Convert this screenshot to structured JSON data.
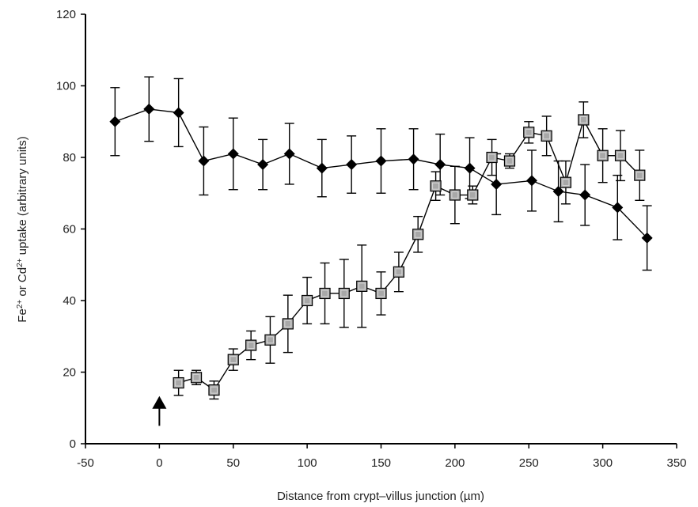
{
  "chart_data": {
    "type": "line",
    "title": "",
    "xlabel": "Distance from crypt–villus junction (µm)",
    "ylabel": {
      "parts": [
        {
          "t": "Fe",
          "sup": false
        },
        {
          "t": "2+",
          "sup": true
        },
        {
          "t": " or Cd",
          "sup": false
        },
        {
          "t": "2+",
          "sup": true
        },
        {
          "t": " uptake (arbitrary units)",
          "sup": false
        }
      ]
    },
    "xlim": [
      -50,
      350
    ],
    "ylim": [
      0,
      120
    ],
    "xticks": [
      -50,
      0,
      50,
      100,
      150,
      200,
      250,
      300,
      350
    ],
    "yticks": [
      0,
      20,
      40,
      60,
      80,
      100,
      120
    ],
    "grid": false,
    "legend": "none",
    "annotation": {
      "type": "arrow-up",
      "x": 0,
      "y_range": [
        5,
        12
      ]
    },
    "series": [
      {
        "marker": "diamond",
        "color": "#000000",
        "x": [
          -30,
          -7,
          13,
          30,
          50,
          70,
          88,
          110,
          130,
          150,
          172,
          190,
          210,
          228,
          252,
          270,
          288,
          310,
          330
        ],
        "y": [
          90,
          93.5,
          92.5,
          79,
          81,
          78,
          81,
          77,
          78,
          79,
          79.5,
          78,
          77,
          72.5,
          73.5,
          70.5,
          69.5,
          66,
          57.5
        ],
        "err": [
          9.5,
          9,
          9.5,
          9.5,
          10,
          7,
          8.5,
          8,
          8,
          9,
          8.5,
          8.5,
          8.5,
          8.5,
          8.5,
          8.5,
          8.5,
          9,
          9
        ]
      },
      {
        "marker": "square",
        "color": "#a8a8a8",
        "x": [
          13,
          25,
          37,
          50,
          62,
          75,
          87,
          100,
          112,
          125,
          137,
          150,
          162,
          175,
          187,
          200,
          212,
          225,
          237,
          250,
          262,
          275,
          287,
          300,
          312,
          325
        ],
        "y": [
          17,
          18.5,
          15,
          23.5,
          27.5,
          29,
          33.5,
          40,
          42,
          42,
          44,
          42,
          48,
          58.5,
          72,
          69.5,
          69.5,
          80,
          79,
          87,
          86,
          73,
          90.5,
          80.5,
          80.5,
          75
        ],
        "err": [
          3.5,
          2,
          2.5,
          3,
          4,
          6.5,
          8,
          6.5,
          8.5,
          9.5,
          11.5,
          6,
          5.5,
          5,
          4,
          8,
          2.5,
          5,
          2,
          3,
          5.5,
          6,
          5,
          7.5,
          7,
          7
        ]
      }
    ]
  }
}
